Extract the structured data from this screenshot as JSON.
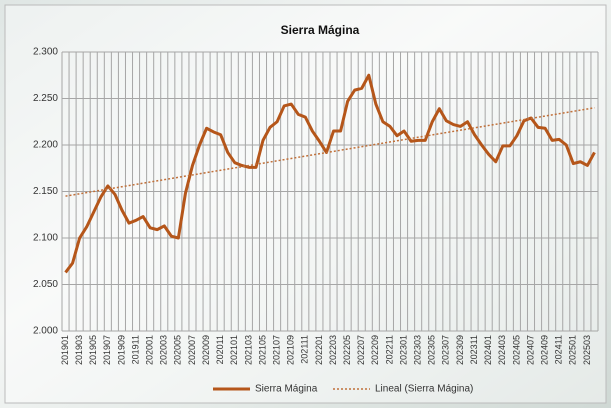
{
  "chart_data": {
    "type": "line",
    "title": "Sierra Mágina",
    "categories": [
      "201901",
      null,
      "201903",
      null,
      "201905",
      null,
      "201907",
      null,
      "201909",
      null,
      "201911",
      null,
      "202001",
      null,
      "202003",
      null,
      "202005",
      null,
      "202007",
      null,
      "202009",
      null,
      "202011",
      null,
      "202101",
      null,
      "202103",
      null,
      "202105",
      null,
      "202107",
      null,
      "202109",
      null,
      "202111",
      null,
      "202201",
      null,
      "202203",
      null,
      "202205",
      null,
      "202207",
      null,
      "202209",
      null,
      "202211",
      null,
      "202301",
      null,
      "202303",
      null,
      "202305",
      null,
      "202307",
      null,
      "202309",
      null,
      "202311",
      null,
      "202401",
      null,
      "202403",
      null,
      "202405",
      null,
      "202407",
      null,
      "202409",
      null,
      "202411",
      null,
      "202501",
      null,
      "202503",
      null
    ],
    "series": [
      {
        "name": "Sierra Mágina",
        "color": "#b5561a",
        "values": [
          2063,
          2073,
          2100,
          2112,
          2128,
          2144,
          2156,
          2147,
          2130,
          2116,
          2119,
          2123,
          2111,
          2109,
          2113,
          2102,
          2100,
          2148,
          2178,
          2200,
          2218,
          2214,
          2211,
          2192,
          2181,
          2178,
          2176,
          2176,
          2205,
          2219,
          2225,
          2242,
          2244,
          2233,
          2230,
          2215,
          2204,
          2192,
          2215,
          2215,
          2247,
          2259,
          2261,
          2275,
          2244,
          2225,
          2220,
          2210,
          2215,
          2204,
          2205,
          2205,
          2225,
          2239,
          2226,
          2222,
          2220,
          2225,
          2211,
          2200,
          2190,
          2182,
          2199,
          2199,
          2210,
          2226,
          2229,
          2219,
          2218,
          2205,
          2206,
          2200,
          2180,
          2182,
          2178,
          2192
        ]
      }
    ],
    "trendline": {
      "name": "Lineal (Sierra Mágina)",
      "color": "#c0703a",
      "start": 2145,
      "end": 2240
    },
    "ylim": [
      2000,
      2300
    ],
    "yticks": [
      {
        "value": 2000,
        "label": "2.000"
      },
      {
        "value": 2050,
        "label": "2.050"
      },
      {
        "value": 2100,
        "label": "2.100"
      },
      {
        "value": 2150,
        "label": "2.150"
      },
      {
        "value": 2200,
        "label": "2.200"
      },
      {
        "value": 2250,
        "label": "2.250"
      },
      {
        "value": 2300,
        "label": "2.300"
      }
    ],
    "grid": true
  }
}
